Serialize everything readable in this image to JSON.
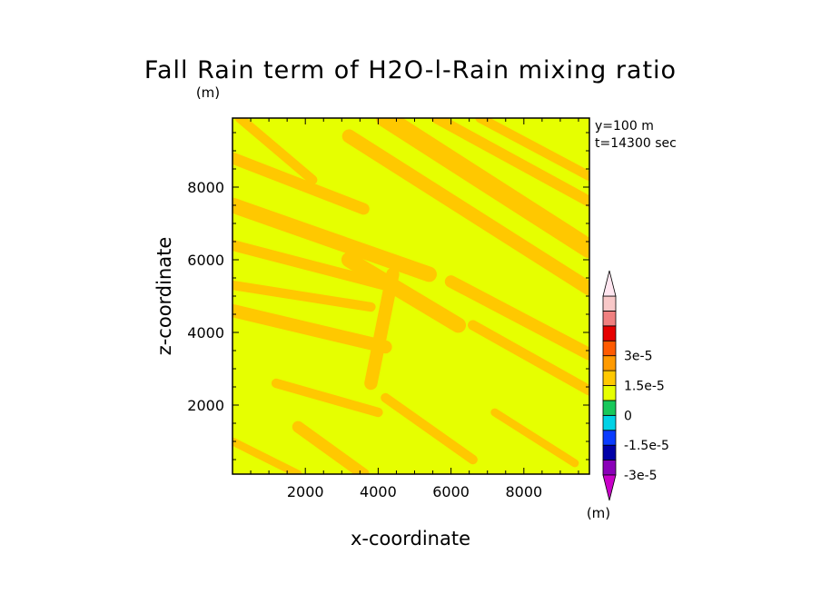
{
  "chart_data": {
    "type": "heatmap",
    "title": "Fall Rain term of H2O-l-Rain mixing ratio",
    "title_unit": "(m)",
    "xlabel": "x-coordinate",
    "ylabel": "z-coordinate",
    "info": [
      "y=100 m",
      "t=14300 sec"
    ],
    "x": {
      "range": [
        0,
        9800
      ],
      "ticks": [
        2000,
        4000,
        6000,
        8000
      ],
      "tick_labels": [
        "2000",
        "4000",
        "6000",
        "8000"
      ]
    },
    "z": {
      "range": [
        100,
        9900
      ],
      "ticks": [
        2000,
        4000,
        6000,
        8000
      ],
      "tick_labels": [
        "2000",
        "4000",
        "6000",
        "8000"
      ]
    },
    "value_range": [
      -3e-05,
      3e-05
    ],
    "colorbar": {
      "unit": "(m)",
      "tick_labels": [
        "3e-5",
        "1.5e-5",
        "0",
        "-1.5e-5",
        "-3e-5"
      ],
      "tick_values": [
        3e-05,
        1.5e-05,
        0,
        -1.5e-05,
        -3e-05
      ],
      "levels": [
        {
          "from": -3e-05,
          "to": -2.25e-05,
          "color": "#8a00b8"
        },
        {
          "from": -2.25e-05,
          "to": -1.5e-05,
          "color": "#0000a8"
        },
        {
          "from": -1.5e-05,
          "to": -7.5e-06,
          "color": "#0a3cff"
        },
        {
          "from": -7.5e-06,
          "to": 0,
          "color": "#00d2e6"
        },
        {
          "from": 0,
          "to": 7.5e-06,
          "color": "#18c85a"
        },
        {
          "from": 7.5e-06,
          "to": 1.5e-05,
          "color": "#e6ff00"
        },
        {
          "from": 1.5e-05,
          "to": 2.25e-05,
          "color": "#ffc800"
        },
        {
          "from": 2.25e-05,
          "to": 3e-05,
          "color": "#ff9a00"
        },
        {
          "from": 3e-05,
          "to": 3.75e-05,
          "color": "#ff5a00"
        },
        {
          "from": 3.75e-05,
          "to": 4.5e-05,
          "color": "#e60000"
        },
        {
          "from": 4.5e-05,
          "to": 5.25e-05,
          "color": "#f08080"
        },
        {
          "from": 5.25e-05,
          "to": 6e-05,
          "color": "#f8c8c8"
        }
      ],
      "lower_extension_color": "#c800c8",
      "upper_extension_color": "#ffe6f0"
    },
    "field_colors": {
      "background": "#e6ff00",
      "band": "#ffc800"
    },
    "bands": [
      {
        "name": "upper-diagonal-1",
        "from": [
          4200,
          9900
        ],
        "to": [
          9800,
          6300
        ],
        "width": 520
      },
      {
        "name": "upper-diagonal-2",
        "from": [
          3200,
          9400
        ],
        "to": [
          9800,
          5200
        ],
        "width": 380
      },
      {
        "name": "upper-diagonal-3",
        "from": [
          5600,
          9900
        ],
        "to": [
          9800,
          7600
        ],
        "width": 300
      },
      {
        "name": "upper-diagonal-4",
        "from": [
          6800,
          9900
        ],
        "to": [
          9800,
          8300
        ],
        "width": 260
      },
      {
        "name": "mid-diagonal",
        "from": [
          0,
          7500
        ],
        "to": [
          5400,
          5600
        ],
        "width": 420
      },
      {
        "name": "mid-diagonal-2",
        "from": [
          0,
          6400
        ],
        "to": [
          4600,
          5200
        ],
        "width": 300
      },
      {
        "name": "left-upper",
        "from": [
          0,
          8800
        ],
        "to": [
          3600,
          7400
        ],
        "width": 320
      },
      {
        "name": "center-cross",
        "from": [
          3200,
          6000
        ],
        "to": [
          6200,
          4200
        ],
        "width": 420
      },
      {
        "name": "center-vertical",
        "from": [
          4400,
          5600
        ],
        "to": [
          3800,
          2600
        ],
        "width": 360
      },
      {
        "name": "left-mid",
        "from": [
          0,
          4600
        ],
        "to": [
          4200,
          3600
        ],
        "width": 360
      },
      {
        "name": "left-mid-2",
        "from": [
          0,
          5300
        ],
        "to": [
          3800,
          4700
        ],
        "width": 260
      },
      {
        "name": "right-mid",
        "from": [
          6000,
          5400
        ],
        "to": [
          9800,
          3400
        ],
        "width": 340
      },
      {
        "name": "right-mid-2",
        "from": [
          6600,
          4200
        ],
        "to": [
          9800,
          2400
        ],
        "width": 280
      },
      {
        "name": "lower-left",
        "from": [
          1200,
          2600
        ],
        "to": [
          4000,
          1800
        ],
        "width": 260
      },
      {
        "name": "bottom-diagonal",
        "from": [
          1800,
          1400
        ],
        "to": [
          3600,
          100
        ],
        "width": 320
      },
      {
        "name": "bottom-left",
        "from": [
          0,
          1000
        ],
        "to": [
          1800,
          100
        ],
        "width": 220
      },
      {
        "name": "bottom-center",
        "from": [
          4200,
          2200
        ],
        "to": [
          6600,
          500
        ],
        "width": 260
      },
      {
        "name": "bottom-right",
        "from": [
          7200,
          1800
        ],
        "to": [
          9400,
          400
        ],
        "width": 220
      },
      {
        "name": "top-left",
        "from": [
          200,
          9900
        ],
        "to": [
          2200,
          8200
        ],
        "width": 260
      }
    ]
  }
}
